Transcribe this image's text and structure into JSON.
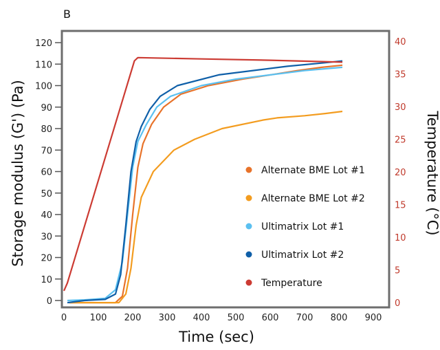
{
  "chart_data": {
    "type": "line",
    "panel_label": "B",
    "xlabel": "Time (sec)",
    "ylabel": "Storage modulus (G') (Pa)",
    "y2label": "Temperature (°C)",
    "xlim": [
      0,
      900
    ],
    "ylim": [
      0,
      120
    ],
    "y2lim": [
      0,
      40
    ],
    "xticks": [
      0,
      100,
      200,
      300,
      400,
      500,
      600,
      700,
      800,
      900
    ],
    "yticks": [
      0,
      10,
      20,
      30,
      40,
      50,
      60,
      70,
      80,
      90,
      100,
      110,
      120
    ],
    "y2ticks": [
      0,
      5,
      10,
      15,
      20,
      25,
      30,
      35,
      40
    ],
    "grid": false,
    "legend_position": "center-right",
    "series": [
      {
        "name": "Alternate BME Lot #1",
        "axis": "left",
        "color": "#e8732a",
        "x": [
          15,
          100,
          150,
          170,
          185,
          200,
          215,
          230,
          255,
          290,
          340,
          420,
          520,
          600,
          680,
          750,
          810
        ],
        "y": [
          -1,
          -1,
          -1,
          2,
          15,
          40,
          62,
          73,
          82,
          90,
          96,
          100,
          103,
          105,
          107,
          108.5,
          109.5
        ]
      },
      {
        "name": "Alternate BME Lot #2",
        "axis": "left",
        "color": "#f39c1f",
        "x": [
          15,
          100,
          160,
          180,
          195,
          210,
          225,
          260,
          320,
          380,
          460,
          580,
          620,
          700,
          760,
          810
        ],
        "y": [
          -1,
          -1,
          -1,
          3,
          15,
          35,
          48,
          60,
          70,
          75,
          80,
          84,
          85,
          86,
          87,
          88
        ]
      },
      {
        "name": "Ultimatrix Lot #1",
        "axis": "left",
        "color": "#5bc0f0",
        "x": [
          10,
          60,
          120,
          150,
          170,
          185,
          200,
          215,
          240,
          270,
          310,
          400,
          500,
          600,
          700,
          810
        ],
        "y": [
          0,
          0.3,
          1,
          5,
          18,
          40,
          62,
          74,
          82,
          90,
          95,
          100,
          103,
          105,
          107,
          108.5
        ]
      },
      {
        "name": "Ultimatrix Lot #2",
        "axis": "left",
        "color": "#0f5fa8",
        "x": [
          10,
          60,
          120,
          150,
          165,
          180,
          195,
          210,
          225,
          250,
          280,
          330,
          450,
          550,
          650,
          750,
          810
        ],
        "y": [
          -1,
          0,
          0.5,
          3,
          12,
          35,
          60,
          74,
          81,
          89,
          95,
          100,
          105,
          107,
          109,
          110.5,
          111.5
        ]
      },
      {
        "name": "Temperature",
        "axis": "right",
        "color": "#cc3b33",
        "x": [
          0,
          10,
          205,
          215,
          400,
          600,
          810
        ],
        "y": [
          1.8,
          3,
          37,
          37.5,
          37.3,
          37.1,
          36.8
        ]
      }
    ]
  }
}
